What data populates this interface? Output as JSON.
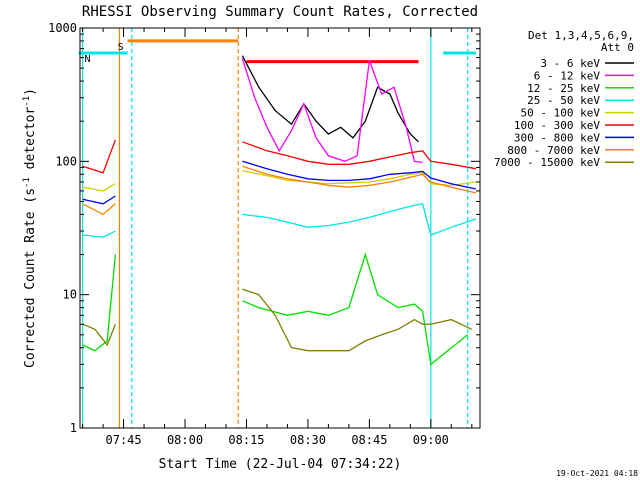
{
  "chart_data": {
    "type": "line",
    "title": "RHESSI Observing Summary Count Rates, Corrected",
    "xlabel": "Start Time (22-Jul-04 07:34:22)",
    "ylabel_main": "Corrected Count Rate (s",
    "ylabel_exp1": "-1",
    "ylabel_mid": " detector",
    "ylabel_exp2": "-1",
    "ylabel_end": ")",
    "y_scale": "log",
    "ylim": [
      1,
      1000
    ],
    "xlim": [
      "07:34:22",
      "09:12:00"
    ],
    "x_ticks": [
      "07:45",
      "08:00",
      "08:15",
      "08:30",
      "08:45",
      "09:00"
    ],
    "y_ticks": [
      "1",
      "10",
      "100",
      "1000"
    ],
    "legend": {
      "position": "right",
      "header_line1": "Det 1,3,4,5,6,9,",
      "header_line2": "Att 0",
      "entries": [
        {
          "label": "3 - 6 keV",
          "color": "#000000"
        },
        {
          "label": "6 - 12 keV",
          "color": "#ff00ff"
        },
        {
          "label": "12 - 25 keV",
          "color": "#00e000"
        },
        {
          "label": "25 - 50 keV",
          "color": "#00e5e5"
        },
        {
          "label": "50 - 100 keV",
          "color": "#d0d000"
        },
        {
          "label": "100 - 300 keV",
          "color": "#ff0000"
        },
        {
          "label": "300 - 800 keV",
          "color": "#0000ff"
        },
        {
          "label": "800 - 7000 keV",
          "color": "#ff8000"
        },
        {
          "label": "7000 - 15000 keV",
          "color": "#808000"
        }
      ]
    },
    "series": [
      {
        "name": "3 - 6 keV",
        "color": "#000000",
        "points": [
          [
            "08:14",
            620
          ],
          [
            "08:18",
            360
          ],
          [
            "08:22",
            240
          ],
          [
            "08:26",
            190
          ],
          [
            "08:29",
            270
          ],
          [
            "08:32",
            200
          ],
          [
            "08:35",
            160
          ],
          [
            "08:38",
            180
          ],
          [
            "08:41",
            150
          ],
          [
            "08:44",
            200
          ],
          [
            "08:47",
            360
          ],
          [
            "08:50",
            320
          ],
          [
            "08:52",
            230
          ],
          [
            "08:55",
            160
          ],
          [
            "08:57",
            140
          ]
        ]
      },
      {
        "name": "6 - 12 keV",
        "color": "#ff00ff",
        "points": [
          [
            "08:14",
            590
          ],
          [
            "08:17",
            300
          ],
          [
            "08:20",
            180
          ],
          [
            "08:23",
            120
          ],
          [
            "08:26",
            170
          ],
          [
            "08:29",
            270
          ],
          [
            "08:32",
            150
          ],
          [
            "08:35",
            110
          ],
          [
            "08:39",
            100
          ],
          [
            "08:42",
            110
          ],
          [
            "08:45",
            570
          ],
          [
            "08:48",
            320
          ],
          [
            "08:51",
            360
          ],
          [
            "08:54",
            180
          ],
          [
            "08:56",
            100
          ],
          [
            "08:58",
            98
          ]
        ]
      },
      {
        "name": "12 - 25 keV",
        "color": "#00e000",
        "points": [
          [
            "07:35",
            4.2
          ],
          [
            "07:38",
            3.8
          ],
          [
            "07:41",
            4.5
          ],
          [
            "07:43",
            20
          ],
          [
            "08:14",
            9
          ],
          [
            "08:18",
            8
          ],
          [
            "08:25",
            7
          ],
          [
            "08:30",
            7.5
          ],
          [
            "08:35",
            7
          ],
          [
            "08:40",
            8
          ],
          [
            "08:44",
            20
          ],
          [
            "08:47",
            10
          ],
          [
            "08:52",
            8
          ],
          [
            "08:56",
            8.5
          ],
          [
            "08:58",
            7.5
          ],
          [
            "09:00",
            3
          ],
          [
            "09:09",
            5
          ]
        ]
      },
      {
        "name": "25 - 50 keV",
        "color": "#00e5e5",
        "points": [
          [
            "07:35",
            28
          ],
          [
            "07:40",
            27
          ],
          [
            "07:43",
            30
          ],
          [
            "08:14",
            40
          ],
          [
            "08:20",
            38
          ],
          [
            "08:25",
            35
          ],
          [
            "08:30",
            32
          ],
          [
            "08:35",
            33
          ],
          [
            "08:40",
            35
          ],
          [
            "08:45",
            38
          ],
          [
            "08:50",
            42
          ],
          [
            "08:55",
            46
          ],
          [
            "08:58",
            48
          ],
          [
            "09:00",
            28
          ],
          [
            "09:05",
            32
          ],
          [
            "09:11",
            37
          ]
        ]
      },
      {
        "name": "50 - 100 keV",
        "color": "#d0d000",
        "points": [
          [
            "07:35",
            64
          ],
          [
            "07:40",
            60
          ],
          [
            "07:43",
            68
          ],
          [
            "08:14",
            85
          ],
          [
            "08:20",
            78
          ],
          [
            "08:25",
            72
          ],
          [
            "08:30",
            70
          ],
          [
            "08:35",
            68
          ],
          [
            "08:40",
            69
          ],
          [
            "08:45",
            70
          ],
          [
            "08:50",
            74
          ],
          [
            "08:55",
            80
          ],
          [
            "08:58",
            82
          ],
          [
            "09:00",
            68
          ],
          [
            "09:05",
            66
          ],
          [
            "09:11",
            70
          ]
        ]
      },
      {
        "name": "100 - 300 keV",
        "color": "#ff0000",
        "points": [
          [
            "07:35",
            92
          ],
          [
            "07:40",
            82
          ],
          [
            "07:43",
            145
          ],
          [
            "08:14",
            140
          ],
          [
            "08:20",
            120
          ],
          [
            "08:25",
            110
          ],
          [
            "08:30",
            100
          ],
          [
            "08:35",
            95
          ],
          [
            "08:40",
            95
          ],
          [
            "08:45",
            100
          ],
          [
            "08:50",
            108
          ],
          [
            "08:55",
            116
          ],
          [
            "08:58",
            120
          ],
          [
            "09:00",
            100
          ],
          [
            "09:05",
            95
          ],
          [
            "09:11",
            88
          ]
        ]
      },
      {
        "name": "300 - 800 keV",
        "color": "#0000ff",
        "points": [
          [
            "07:35",
            52
          ],
          [
            "07:40",
            48
          ],
          [
            "07:43",
            55
          ],
          [
            "08:14",
            100
          ],
          [
            "08:20",
            88
          ],
          [
            "08:25",
            80
          ],
          [
            "08:30",
            74
          ],
          [
            "08:35",
            72
          ],
          [
            "08:40",
            72
          ],
          [
            "08:45",
            74
          ],
          [
            "08:50",
            80
          ],
          [
            "08:55",
            82
          ],
          [
            "08:58",
            84
          ],
          [
            "09:00",
            75
          ],
          [
            "09:05",
            68
          ],
          [
            "09:11",
            62
          ]
        ]
      },
      {
        "name": "800 - 7000 keV",
        "color": "#ff8000",
        "points": [
          [
            "07:35",
            48
          ],
          [
            "07:40",
            40
          ],
          [
            "07:43",
            48
          ],
          [
            "08:14",
            92
          ],
          [
            "08:20",
            80
          ],
          [
            "08:25",
            74
          ],
          [
            "08:30",
            70
          ],
          [
            "08:35",
            66
          ],
          [
            "08:40",
            64
          ],
          [
            "08:45",
            66
          ],
          [
            "08:50",
            70
          ],
          [
            "08:55",
            76
          ],
          [
            "08:58",
            80
          ],
          [
            "09:00",
            70
          ],
          [
            "09:05",
            64
          ],
          [
            "09:11",
            58
          ]
        ]
      },
      {
        "name": "7000 - 15000 keV",
        "color": "#808000",
        "points": [
          [
            "07:35",
            6
          ],
          [
            "07:38",
            5.5
          ],
          [
            "07:41",
            4.2
          ],
          [
            "07:43",
            6
          ],
          [
            "08:14",
            11
          ],
          [
            "08:18",
            10
          ],
          [
            "08:22",
            7
          ],
          [
            "08:26",
            4
          ],
          [
            "08:30",
            3.8
          ],
          [
            "08:35",
            3.8
          ],
          [
            "08:40",
            3.8
          ],
          [
            "08:44",
            4.5
          ],
          [
            "08:48",
            5
          ],
          [
            "08:52",
            5.5
          ],
          [
            "08:56",
            6.5
          ],
          [
            "08:58",
            6
          ],
          [
            "09:00",
            6
          ],
          [
            "09:05",
            6.5
          ],
          [
            "09:10",
            5.5
          ]
        ]
      }
    ],
    "attenuator_segments": [
      {
        "label": "S",
        "color": "#ff8000",
        "x_start": "07:46",
        "x_end": "08:13",
        "y": 800
      },
      {
        "label": "N",
        "color": "#00e5e5",
        "x_start": "07:34",
        "x_end": "07:46",
        "y": 650
      },
      {
        "label": "",
        "color": "#00e5e5",
        "x_start": "09:03",
        "x_end": "09:11",
        "y": 650
      }
    ],
    "flare_bar": {
      "color": "#ff0000",
      "x_start": "08:15",
      "x_end": "08:57",
      "y": 560
    },
    "vertical_markers": [
      {
        "x": "07:35",
        "color": "#00e5e5",
        "style": "solid"
      },
      {
        "x": "07:44",
        "color": "#ff8000",
        "style": "solid"
      },
      {
        "x": "07:47",
        "color": "#00e5e5",
        "style": "dashed"
      },
      {
        "x": "08:13",
        "color": "#ff8000",
        "style": "dashed"
      },
      {
        "x": "09:00",
        "color": "#00e5e5",
        "style": "solid"
      },
      {
        "x": "09:09",
        "color": "#00e5e5",
        "style": "dashed"
      }
    ],
    "date_stamp": "19-Oct-2021 04:18"
  }
}
